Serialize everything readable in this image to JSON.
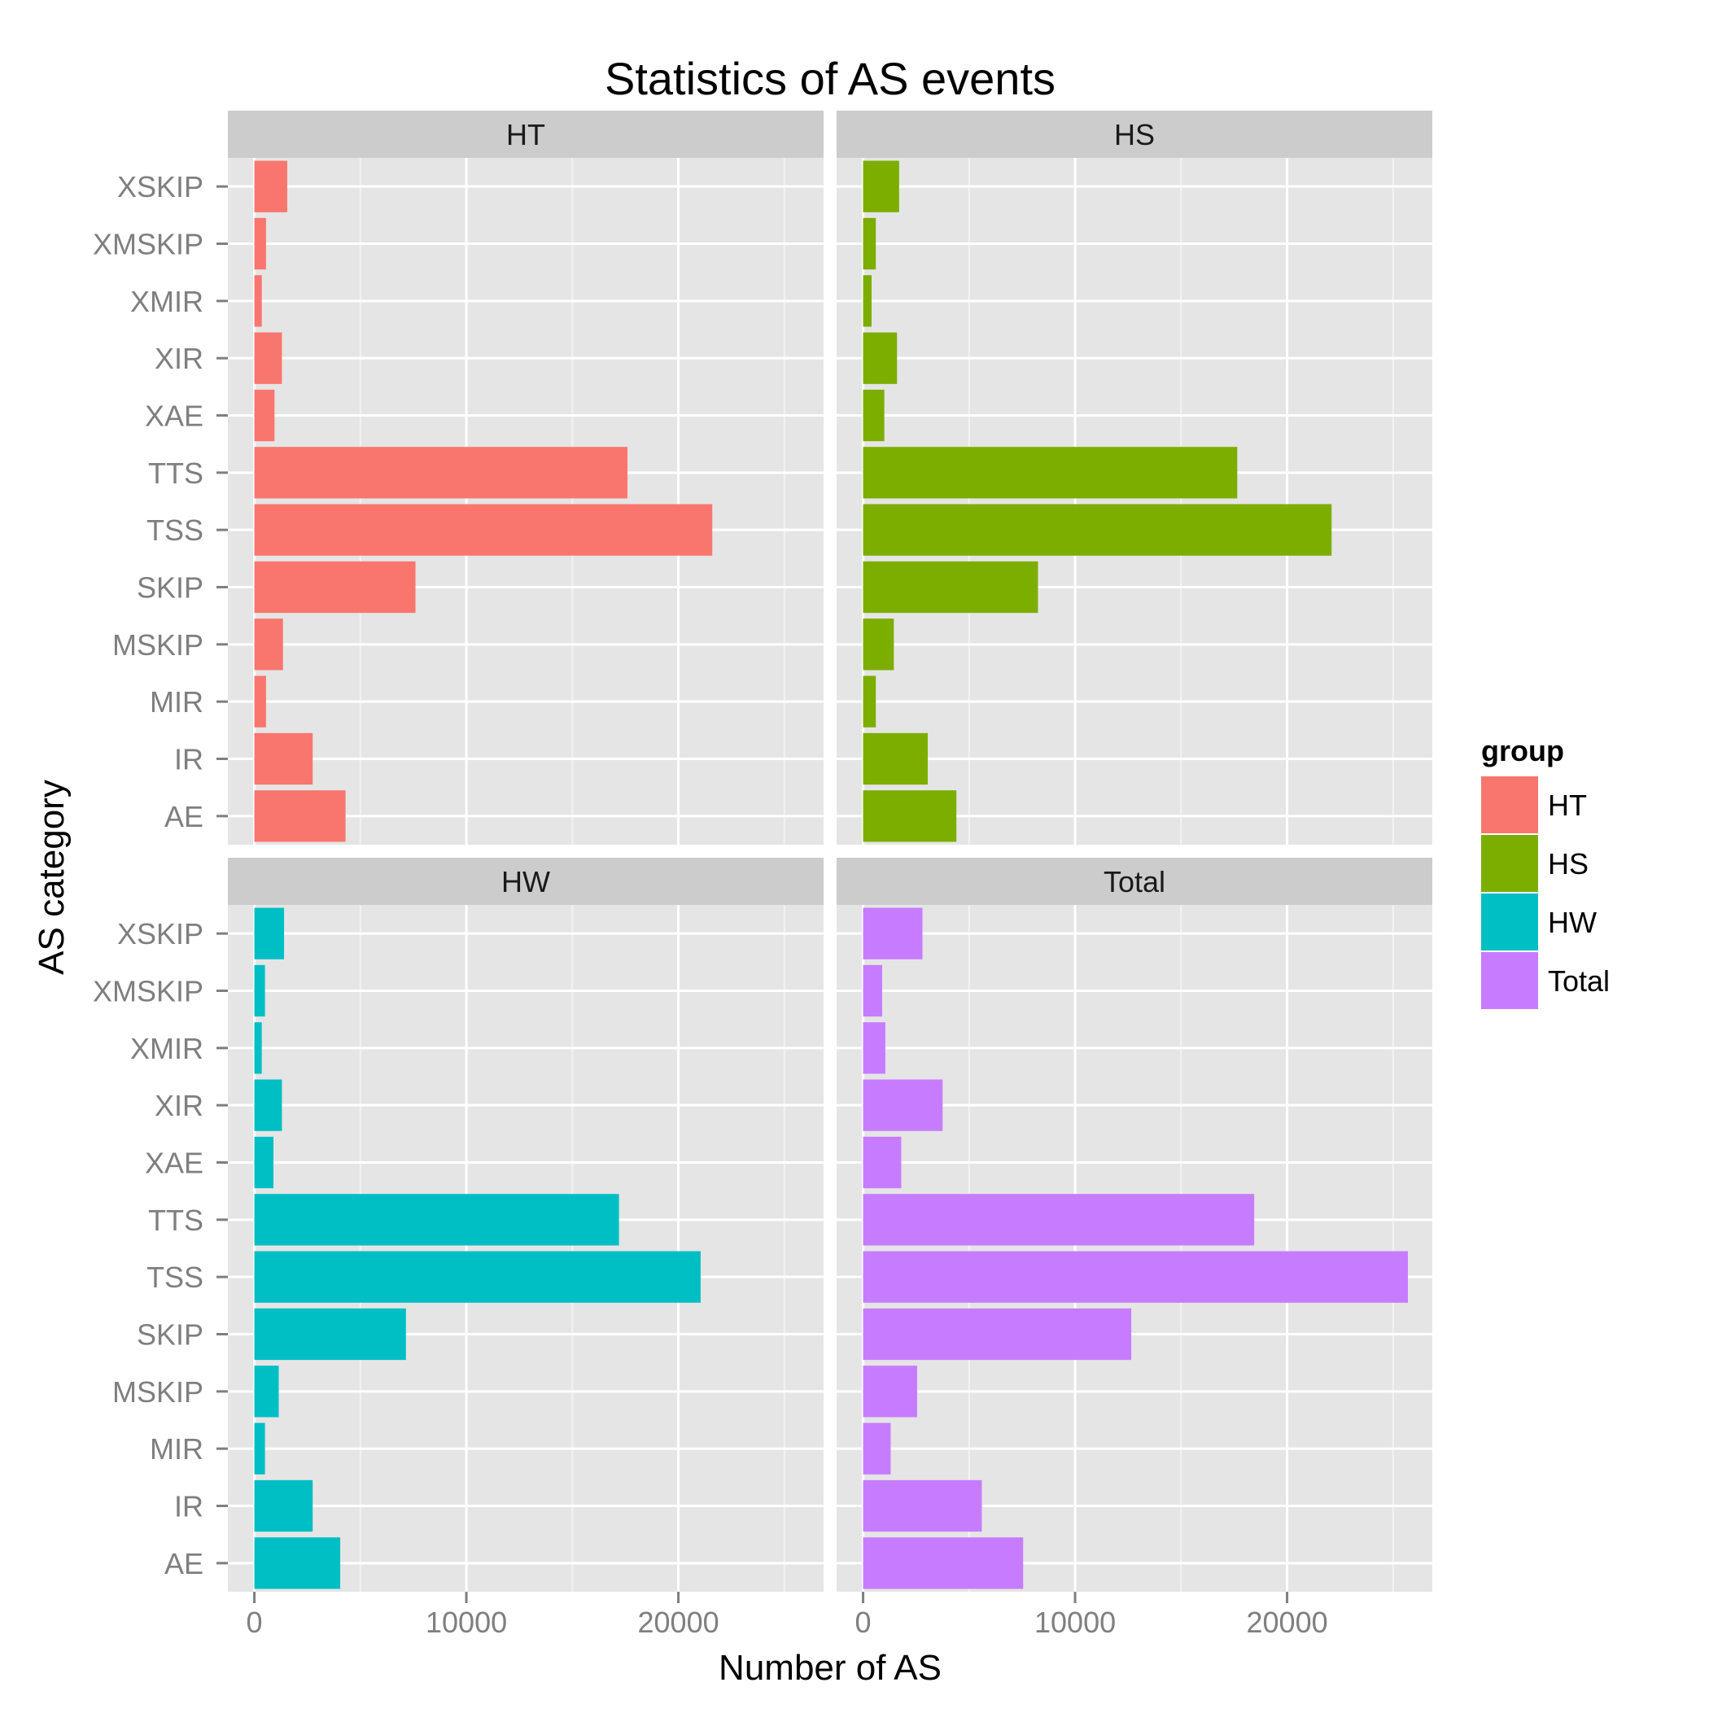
{
  "chart_data": {
    "type": "bar",
    "title": "Statistics of AS events",
    "xlabel": "Number of AS",
    "ylabel": "AS category",
    "categories": [
      "AE",
      "IR",
      "MIR",
      "MSKIP",
      "SKIP",
      "TSS",
      "TTS",
      "XAE",
      "XIR",
      "XMIR",
      "XMSKIP",
      "XSKIP"
    ],
    "xlim": [
      -1250,
      26850
    ],
    "x_ticks": [
      0,
      10000,
      20000
    ],
    "x_tick_labels": [
      "0",
      "10000",
      "20000"
    ],
    "grid": true,
    "legend": {
      "title": "group",
      "position": "right",
      "entries": [
        "HT",
        "HS",
        "HW",
        "Total"
      ]
    },
    "panel_layout": "2x2",
    "series": [
      {
        "name": "HT",
        "color": "#F8766D",
        "values": [
          4300,
          2750,
          550,
          1350,
          7600,
          21600,
          17600,
          950,
          1300,
          350,
          550,
          1550
        ]
      },
      {
        "name": "HS",
        "color": "#7CAE00",
        "values": [
          4400,
          3050,
          600,
          1450,
          8250,
          22100,
          17650,
          1000,
          1600,
          400,
          600,
          1700
        ]
      },
      {
        "name": "HW",
        "color": "#00BFC4",
        "values": [
          4050,
          2750,
          500,
          1150,
          7150,
          21050,
          17200,
          900,
          1300,
          350,
          500,
          1400
        ]
      },
      {
        "name": "Total",
        "color": "#C77CFF",
        "values": [
          7550,
          5600,
          1300,
          2550,
          12650,
          25700,
          18450,
          1800,
          3750,
          1050,
          900,
          2800
        ]
      }
    ]
  }
}
